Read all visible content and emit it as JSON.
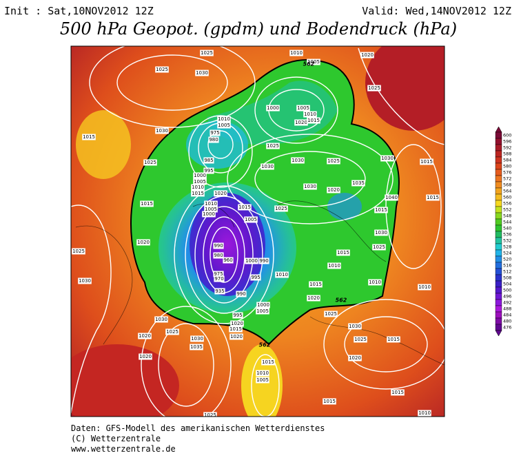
{
  "header": {
    "init": "Init : Sat,10NOV2012 12Z",
    "valid": "Valid: Wed,14NOV2012 12Z",
    "title": "500 hPa Geopot. (gpdm) und Bodendruck (hPa)"
  },
  "footer": {
    "lines": [
      "Daten: GFS-Modell des amerikanischen Wetterdienstes",
      "(C) Wetterzentrale",
      "www.wetterzentrale.de"
    ]
  },
  "colorbar": {
    "values": [
      600,
      596,
      592,
      588,
      584,
      580,
      576,
      572,
      568,
      564,
      560,
      556,
      552,
      548,
      544,
      540,
      536,
      532,
      528,
      524,
      520,
      516,
      512,
      508,
      504,
      500,
      496,
      492,
      488,
      484,
      480,
      476
    ],
    "colors": [
      "#7a0a36",
      "#92102e",
      "#a81a28",
      "#bc2622",
      "#ce3420",
      "#dc461c",
      "#e65c1e",
      "#ec7420",
      "#f08c20",
      "#f2a41e",
      "#f4bc20",
      "#f6d820",
      "#c4e21e",
      "#88d820",
      "#50cc22",
      "#2ec430",
      "#22bc62",
      "#22c4a0",
      "#22ccd0",
      "#22b4e8",
      "#228ee6",
      "#226ede",
      "#2450d6",
      "#2a32cc",
      "#3a20c6",
      "#5418cc",
      "#7018d4",
      "#8c18dc",
      "#aa18dc",
      "#9c10bc",
      "#7e0ca6",
      "#600890"
    ]
  },
  "map": {
    "contour_labels": [
      "1025",
      "1010",
      "1020",
      "1005",
      "1025",
      "1030",
      "1025",
      "1000",
      "1005",
      "1010",
      "1020",
      "1015",
      "1010",
      "1005",
      "975",
      "980",
      "1030",
      "1015",
      "1025",
      "1025",
      "1030",
      "1025",
      "1030",
      "1015",
      "1030",
      "985",
      "995",
      "1000",
      "1005",
      "1010",
      "1015",
      "1020",
      "1030",
      "1020",
      "1035",
      "1040",
      "1015",
      "1015",
      "1010",
      "1005",
      "1000",
      "1015",
      "1025",
      "1005",
      "1015",
      "1030",
      "1020",
      "990",
      "980",
      "960",
      "1000",
      "990",
      "1015",
      "1025",
      "1025",
      "1010",
      "1010",
      "1010",
      "1030",
      "975",
      "970",
      "995",
      "1010",
      "935",
      "990",
      "1020",
      "1025",
      "1000",
      "1005",
      "1015",
      "995",
      "1030",
      "1020",
      "1015",
      "1020",
      "1030",
      "1025",
      "1015",
      "1025",
      "1030",
      "1020",
      "1035",
      "1020",
      "1015",
      "1010",
      "1005",
      "1015",
      "1015",
      "1010",
      "1025",
      "1020"
    ],
    "height_labels": [
      "562",
      "562",
      "562"
    ]
  }
}
